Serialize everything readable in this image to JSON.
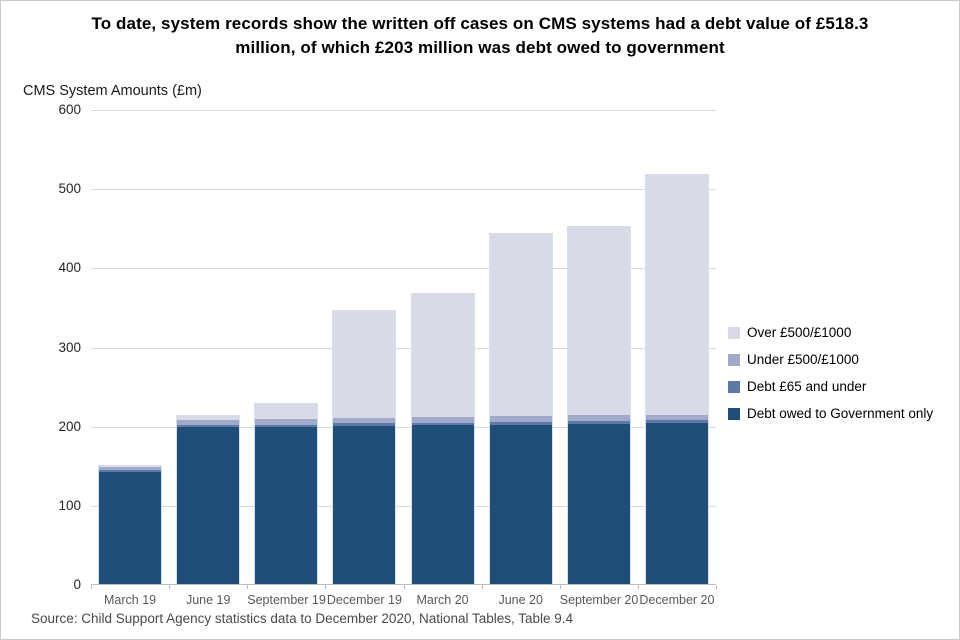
{
  "title": "To date, system records show the written off cases on CMS systems had a debt value of £518.3 million, of which £203 million was debt owed to government",
  "axis_title": "CMS System Amounts (£m)",
  "source": "Source: Child Support Agency statistics data to December 2020, National Tables, Table 9.4",
  "chart_data": {
    "type": "bar",
    "stacked": true,
    "title": "To date, system records show the written off cases on CMS systems had a debt value of £518.3 million, of which £203 million was debt owed to government",
    "ylabel": "CMS System Amounts (£m)",
    "ylim": [
      0,
      600
    ],
    "y_ticks": [
      0,
      100,
      200,
      300,
      400,
      500,
      600
    ],
    "grid": true,
    "legend_position": "right",
    "categories": [
      "March 19",
      "June 19",
      "September 19",
      "December 19",
      "March 20",
      "June 20",
      "September 20",
      "December 20"
    ],
    "series": [
      {
        "name": "Debt owed to Government only",
        "color": "#1F4E79",
        "values": [
          142,
          198,
          198,
          200,
          201,
          201,
          202,
          203
        ]
      },
      {
        "name": "Debt £65 and under",
        "color": "#5C79A8",
        "values": [
          2,
          3,
          3,
          3,
          3,
          4,
          4,
          4
        ]
      },
      {
        "name": "Under £500/£1000",
        "color": "#A1ABC9",
        "values": [
          4,
          6,
          7,
          7,
          7,
          7,
          7,
          6
        ]
      },
      {
        "name": "Over £500/£1000",
        "color": "#D8DBE7",
        "values": [
          2,
          6,
          21,
          136,
          157,
          232,
          239,
          305.3
        ]
      }
    ],
    "totals": [
      150,
      213,
      229,
      346,
      368,
      444,
      452,
      518.3
    ],
    "colors": {
      "gridline": "#d9d9d9",
      "axis_line": "#bfbfbf",
      "x_label_text": "#595959",
      "y_label_text": "#262626"
    }
  }
}
